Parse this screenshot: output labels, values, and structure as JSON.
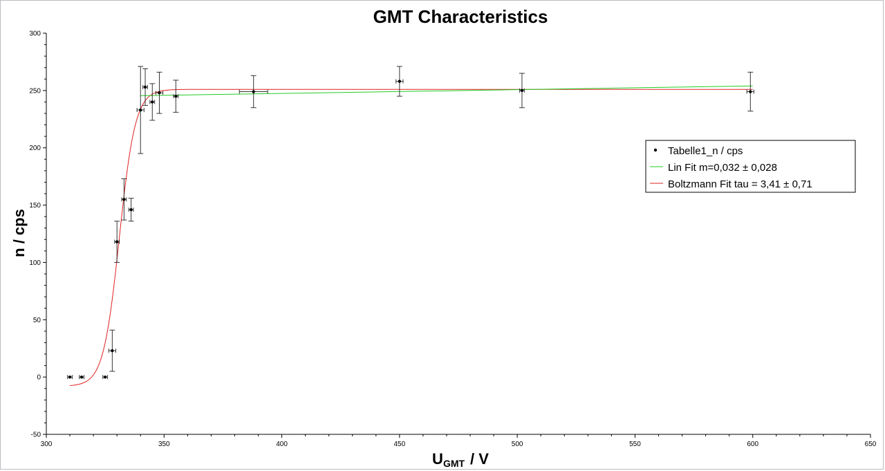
{
  "chart_data": {
    "type": "scatter",
    "title": "GMT Characteristics",
    "xlabel": {
      "main": "U",
      "sub": "GMT",
      "unit": "/ V"
    },
    "ylabel": "n / cps",
    "xlim": [
      300,
      650
    ],
    "ylim": [
      -50,
      300
    ],
    "x_ticks": [
      300,
      350,
      400,
      450,
      500,
      550,
      600,
      650
    ],
    "y_ticks": [
      -50,
      0,
      50,
      100,
      150,
      200,
      250,
      300
    ],
    "x_minor_step": 10,
    "y_minor_step": 10,
    "grid": false,
    "legend_position": "right",
    "series": [
      {
        "name": "Tabelle1_n / cps",
        "kind": "points",
        "color": "#000000",
        "points": [
          {
            "x": 310,
            "y": 0,
            "xerr": 1,
            "yerr": 0
          },
          {
            "x": 315,
            "y": 0,
            "xerr": 1,
            "yerr": 0
          },
          {
            "x": 325,
            "y": 0,
            "xerr": 1,
            "yerr": 0
          },
          {
            "x": 328,
            "y": 23,
            "xerr": 1.5,
            "yerr": 18
          },
          {
            "x": 330,
            "y": 118,
            "xerr": 1,
            "yerr": 18
          },
          {
            "x": 333,
            "y": 155,
            "xerr": 1,
            "yerr": 18
          },
          {
            "x": 336,
            "y": 146,
            "xerr": 1,
            "yerr": 10
          },
          {
            "x": 340,
            "y": 233,
            "xerr": 1.5,
            "yerr": 38
          },
          {
            "x": 342,
            "y": 253,
            "xerr": 1,
            "yerr": 16
          },
          {
            "x": 345,
            "y": 240,
            "xerr": 1,
            "yerr": 16
          },
          {
            "x": 348,
            "y": 248,
            "xerr": 1.5,
            "yerr": 18
          },
          {
            "x": 355,
            "y": 245,
            "xerr": 1,
            "yerr": 14
          },
          {
            "x": 388,
            "y": 249,
            "xerr": 6,
            "yerr": 14
          },
          {
            "x": 450,
            "y": 258,
            "xerr": 1.5,
            "yerr": 13
          },
          {
            "x": 502,
            "y": 250,
            "xerr": 1,
            "yerr": 15
          },
          {
            "x": 599,
            "y": 249,
            "xerr": 1.5,
            "yerr": 17
          }
        ]
      },
      {
        "name": "Lin Fit m=0,032 ± 0,028",
        "kind": "line",
        "color": "#22cc22",
        "x": [
          340,
          600
        ],
        "y": [
          245.5,
          254
        ]
      },
      {
        "name": "Boltzmann Fit tau = 3,41 ± 0,71",
        "kind": "line",
        "color": "#e02020",
        "boltzmann": {
          "A1": -8,
          "A2": 251,
          "x0": 331,
          "dx": 3.41
        },
        "x_range": [
          310,
          600
        ]
      }
    ]
  }
}
